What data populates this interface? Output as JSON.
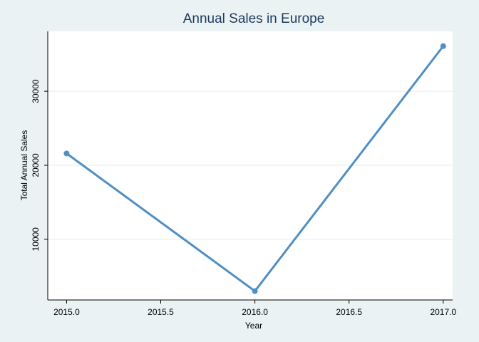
{
  "chart_data": {
    "type": "line",
    "title": "Annual Sales in Europe",
    "xlabel": "Year",
    "ylabel": "Total Annual Sales",
    "x": [
      2015.0,
      2016.0,
      2017.0
    ],
    "series": [
      {
        "values": [
          21600,
          3000,
          36100
        ]
      }
    ],
    "xlim": [
      2014.9,
      2017.05
    ],
    "ylim": [
      1800,
      38100
    ],
    "xticks": [
      2015.0,
      2015.5,
      2016.0,
      2016.5,
      2017.0
    ],
    "xtick_labels": [
      "2015.0",
      "2015.5",
      "2016.0",
      "2016.5",
      "2017.0"
    ],
    "yticks": [
      10000,
      20000,
      30000
    ],
    "ytick_labels": [
      "10000",
      "20000",
      "30000"
    ],
    "grid": "horizontal",
    "legend": "none",
    "colors": {
      "page_background": "#eaf2f3",
      "plot_background": "#ffffff",
      "series": "#4f8fc4",
      "grid": "#e4ecee",
      "title": "#1e3a5f"
    }
  }
}
